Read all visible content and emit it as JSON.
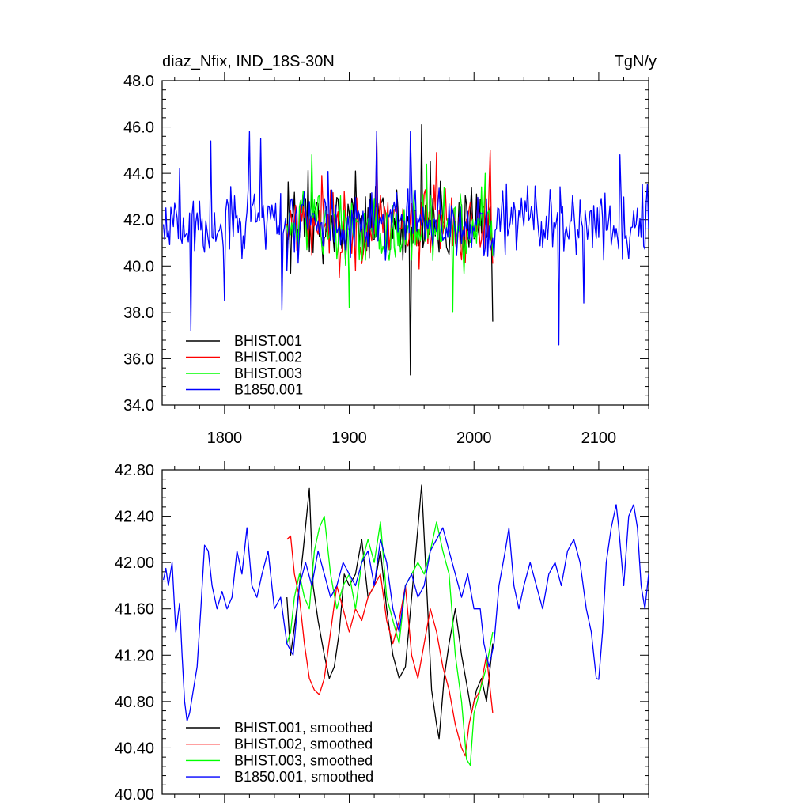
{
  "figure": {
    "title_left": "diaz_Nfix, IND_18S-30N",
    "title_right": "TgN/y"
  },
  "chart_data": [
    {
      "type": "line",
      "title": "diaz_Nfix, IND_18S-30N",
      "units": "TgN/y",
      "xlim": [
        1750,
        2140
      ],
      "ylim": [
        34.0,
        48.0
      ],
      "y_ticks": [
        "34.0",
        "36.0",
        "38.0",
        "40.0",
        "42.0",
        "44.0",
        "46.0",
        "48.0"
      ],
      "x_ticks": [
        "1800",
        "1900",
        "2000",
        "2100"
      ],
      "grid": false,
      "legend_position": "bottom-left",
      "series": [
        {
          "name": "BHIST.001",
          "color": "#000000",
          "x_start": 1850,
          "x_end": 2015,
          "mean": 41.8,
          "amp": 1.6,
          "anchors": [
            [
              1850,
              40.5
            ],
            [
              1905,
              44.1
            ],
            [
              1949,
              35.3
            ],
            [
              1951,
              41.0
            ],
            [
              1958,
              46.1
            ],
            [
              1965,
              44.5
            ],
            [
              2015,
              37.6
            ]
          ]
        },
        {
          "name": "BHIST.002",
          "color": "#ff0000",
          "x_start": 1850,
          "x_end": 2015,
          "mean": 41.7,
          "amp": 1.6,
          "anchors": [
            [
              1905,
              39.8
            ],
            [
              1922,
              45.8
            ],
            [
              1970,
              44.9
            ],
            [
              2013,
              45.0
            ],
            [
              2015,
              40.1
            ]
          ]
        },
        {
          "name": "BHIST.003",
          "color": "#00ff00",
          "x_start": 1850,
          "x_end": 2015,
          "mean": 41.7,
          "amp": 1.5,
          "anchors": [
            [
              1870,
              44.8
            ],
            [
              1900,
              38.2
            ],
            [
              1962,
              44.4
            ],
            [
              1983,
              38.0
            ],
            [
              2009,
              44.0
            ]
          ]
        },
        {
          "name": "B1850.001",
          "color": "#0000ff",
          "x_start": 1751,
          "x_end": 2140,
          "mean": 41.8,
          "amp": 1.5,
          "anchors": [
            [
              1751,
              41.8
            ],
            [
              1764,
              44.2
            ],
            [
              1773,
              37.2
            ],
            [
              1780,
              42.8
            ],
            [
              1789,
              45.4
            ],
            [
              1800,
              38.5
            ],
            [
              1820,
              45.8
            ],
            [
              1829,
              45.5
            ],
            [
              1846,
              38.1
            ],
            [
              1922,
              45.8
            ],
            [
              1949,
              45.8
            ],
            [
              2068,
              36.6
            ],
            [
              2088,
              38.4
            ],
            [
              2117,
              44.8
            ],
            [
              2140,
              41.6
            ]
          ]
        }
      ]
    },
    {
      "type": "line",
      "xlim": [
        1750,
        2140
      ],
      "ylim": [
        40.0,
        42.8
      ],
      "y_ticks": [
        "40.00",
        "40.40",
        "40.80",
        "41.20",
        "41.60",
        "42.00",
        "42.40",
        "42.80"
      ],
      "grid": false,
      "legend_position": "bottom-left",
      "series": [
        {
          "name": "BHIST.001, smoothed",
          "color": "#000000",
          "x_start": 1850,
          "x_end": 2015,
          "points": [
            [
              1850,
              41.7
            ],
            [
              1853,
              41.2
            ],
            [
              1858,
              41.6
            ],
            [
              1863,
              42.1
            ],
            [
              1868,
              42.64
            ],
            [
              1871,
              41.8
            ],
            [
              1875,
              41.5
            ],
            [
              1880,
              41.2
            ],
            [
              1884,
              41.0
            ],
            [
              1888,
              41.1
            ],
            [
              1892,
              41.4
            ],
            [
              1896,
              41.9
            ],
            [
              1900,
              41.8
            ],
            [
              1905,
              41.9
            ],
            [
              1910,
              42.2
            ],
            [
              1915,
              41.7
            ],
            [
              1920,
              41.8
            ],
            [
              1925,
              42.1
            ],
            [
              1930,
              41.6
            ],
            [
              1935,
              41.2
            ],
            [
              1940,
              41.0
            ],
            [
              1945,
              41.1
            ],
            [
              1950,
              41.7
            ],
            [
              1955,
              42.3
            ],
            [
              1958,
              42.67
            ],
            [
              1962,
              41.8
            ],
            [
              1966,
              40.9
            ],
            [
              1970,
              40.6
            ],
            [
              1972,
              40.48
            ],
            [
              1976,
              41.0
            ],
            [
              1980,
              41.3
            ],
            [
              1985,
              41.6
            ],
            [
              1990,
              41.2
            ],
            [
              1995,
              40.9
            ],
            [
              1998,
              40.7
            ],
            [
              2002,
              40.9
            ],
            [
              2006,
              41.0
            ],
            [
              2010,
              40.8
            ],
            [
              2015,
              41.3
            ]
          ]
        },
        {
          "name": "BHIST.002, smoothed",
          "color": "#ff0000",
          "x_start": 1850,
          "x_end": 2015,
          "points": [
            [
              1850,
              42.2
            ],
            [
              1853,
              42.23
            ],
            [
              1856,
              41.9
            ],
            [
              1860,
              41.7
            ],
            [
              1864,
              41.3
            ],
            [
              1868,
              41.0
            ],
            [
              1872,
              40.9
            ],
            [
              1876,
              40.86
            ],
            [
              1880,
              41.0
            ],
            [
              1885,
              41.4
            ],
            [
              1890,
              41.8
            ],
            [
              1895,
              41.6
            ],
            [
              1900,
              41.4
            ],
            [
              1905,
              41.6
            ],
            [
              1910,
              41.5
            ],
            [
              1915,
              41.7
            ],
            [
              1920,
              41.8
            ],
            [
              1925,
              41.9
            ],
            [
              1930,
              41.5
            ],
            [
              1935,
              41.3
            ],
            [
              1940,
              41.5
            ],
            [
              1945,
              41.8
            ],
            [
              1950,
              41.2
            ],
            [
              1955,
              41.0
            ],
            [
              1960,
              41.3
            ],
            [
              1965,
              41.6
            ],
            [
              1970,
              41.4
            ],
            [
              1975,
              41.1
            ],
            [
              1980,
              40.9
            ],
            [
              1985,
              40.6
            ],
            [
              1990,
              40.4
            ],
            [
              1993,
              40.33
            ],
            [
              1996,
              40.6
            ],
            [
              2000,
              40.8
            ],
            [
              2005,
              40.9
            ],
            [
              2010,
              41.2
            ],
            [
              2015,
              40.7
            ]
          ]
        },
        {
          "name": "BHIST.003, smoothed",
          "color": "#00ff00",
          "x_start": 1850,
          "x_end": 2015,
          "points": [
            [
              1850,
              41.3
            ],
            [
              1853,
              41.4
            ],
            [
              1856,
              41.7
            ],
            [
              1860,
              41.9
            ],
            [
              1864,
              41.7
            ],
            [
              1868,
              41.6
            ],
            [
              1872,
              42.1
            ],
            [
              1876,
              42.3
            ],
            [
              1880,
              42.4
            ],
            [
              1885,
              41.9
            ],
            [
              1890,
              41.6
            ],
            [
              1895,
              41.8
            ],
            [
              1900,
              41.9
            ],
            [
              1905,
              41.6
            ],
            [
              1910,
              42.0
            ],
            [
              1915,
              42.2
            ],
            [
              1920,
              42.0
            ],
            [
              1925,
              42.35
            ],
            [
              1930,
              41.7
            ],
            [
              1935,
              41.5
            ],
            [
              1940,
              41.3
            ],
            [
              1945,
              41.8
            ],
            [
              1950,
              41.9
            ],
            [
              1955,
              42.0
            ],
            [
              1960,
              41.9
            ],
            [
              1965,
              42.1
            ],
            [
              1970,
              42.35
            ],
            [
              1975,
              42.1
            ],
            [
              1980,
              41.9
            ],
            [
              1985,
              41.2
            ],
            [
              1990,
              40.8
            ],
            [
              1994,
              40.3
            ],
            [
              1997,
              40.25
            ],
            [
              2000,
              40.7
            ],
            [
              2005,
              40.9
            ],
            [
              2010,
              41.1
            ],
            [
              2015,
              41.4
            ]
          ]
        },
        {
          "name": "B1850.001, smoothed",
          "color": "#0000ff",
          "x_start": 1751,
          "x_end": 2140,
          "points": [
            [
              1751,
              41.85
            ],
            [
              1753,
              41.95
            ],
            [
              1755,
              41.8
            ],
            [
              1758,
              42.0
            ],
            [
              1761,
              41.4
            ],
            [
              1764,
              41.65
            ],
            [
              1766,
              41.2
            ],
            [
              1768,
              40.8
            ],
            [
              1770,
              40.63
            ],
            [
              1772,
              40.7
            ],
            [
              1775,
              40.9
            ],
            [
              1778,
              41.1
            ],
            [
              1781,
              41.6
            ],
            [
              1784,
              42.15
            ],
            [
              1787,
              42.1
            ],
            [
              1790,
              41.8
            ],
            [
              1794,
              41.6
            ],
            [
              1798,
              41.75
            ],
            [
              1802,
              41.6
            ],
            [
              1806,
              41.7
            ],
            [
              1810,
              42.1
            ],
            [
              1814,
              41.9
            ],
            [
              1818,
              42.3
            ],
            [
              1822,
              41.8
            ],
            [
              1826,
              41.7
            ],
            [
              1830,
              41.9
            ],
            [
              1835,
              42.1
            ],
            [
              1840,
              41.6
            ],
            [
              1845,
              41.7
            ],
            [
              1850,
              41.3
            ],
            [
              1855,
              41.2
            ],
            [
              1860,
              41.8
            ],
            [
              1865,
              42.0
            ],
            [
              1870,
              41.8
            ],
            [
              1875,
              42.1
            ],
            [
              1880,
              41.9
            ],
            [
              1885,
              41.7
            ],
            [
              1890,
              41.8
            ],
            [
              1895,
              42.0
            ],
            [
              1900,
              41.9
            ],
            [
              1905,
              41.8
            ],
            [
              1910,
              42.0
            ],
            [
              1915,
              42.1
            ],
            [
              1920,
              41.8
            ],
            [
              1925,
              42.2
            ],
            [
              1930,
              42.0
            ],
            [
              1935,
              41.6
            ],
            [
              1940,
              41.4
            ],
            [
              1945,
              41.8
            ],
            [
              1950,
              41.9
            ],
            [
              1955,
              41.7
            ],
            [
              1960,
              41.8
            ],
            [
              1965,
              42.1
            ],
            [
              1970,
              42.2
            ],
            [
              1975,
              42.3
            ],
            [
              1980,
              42.1
            ],
            [
              1985,
              41.9
            ],
            [
              1990,
              41.7
            ],
            [
              1995,
              41.9
            ],
            [
              2000,
              41.6
            ],
            [
              2005,
              41.6
            ],
            [
              2008,
              41.3
            ],
            [
              2012,
              41.1
            ],
            [
              2016,
              41.3
            ],
            [
              2020,
              41.8
            ],
            [
              2025,
              42.1
            ],
            [
              2028,
              42.3
            ],
            [
              2032,
              41.8
            ],
            [
              2036,
              41.6
            ],
            [
              2040,
              41.8
            ],
            [
              2045,
              42.0
            ],
            [
              2050,
              41.8
            ],
            [
              2055,
              41.6
            ],
            [
              2060,
              41.9
            ],
            [
              2065,
              42.0
            ],
            [
              2070,
              41.8
            ],
            [
              2075,
              42.1
            ],
            [
              2080,
              42.2
            ],
            [
              2085,
              42.0
            ],
            [
              2090,
              41.6
            ],
            [
              2094,
              41.4
            ],
            [
              2098,
              41.0
            ],
            [
              2100,
              40.99
            ],
            [
              2103,
              41.4
            ],
            [
              2106,
              42.0
            ],
            [
              2110,
              42.3
            ],
            [
              2114,
              42.5
            ],
            [
              2116,
              42.3
            ],
            [
              2120,
              41.8
            ],
            [
              2124,
              42.4
            ],
            [
              2128,
              42.5
            ],
            [
              2131,
              42.3
            ],
            [
              2134,
              41.8
            ],
            [
              2137,
              41.6
            ],
            [
              2140,
              41.9
            ]
          ]
        }
      ]
    }
  ]
}
